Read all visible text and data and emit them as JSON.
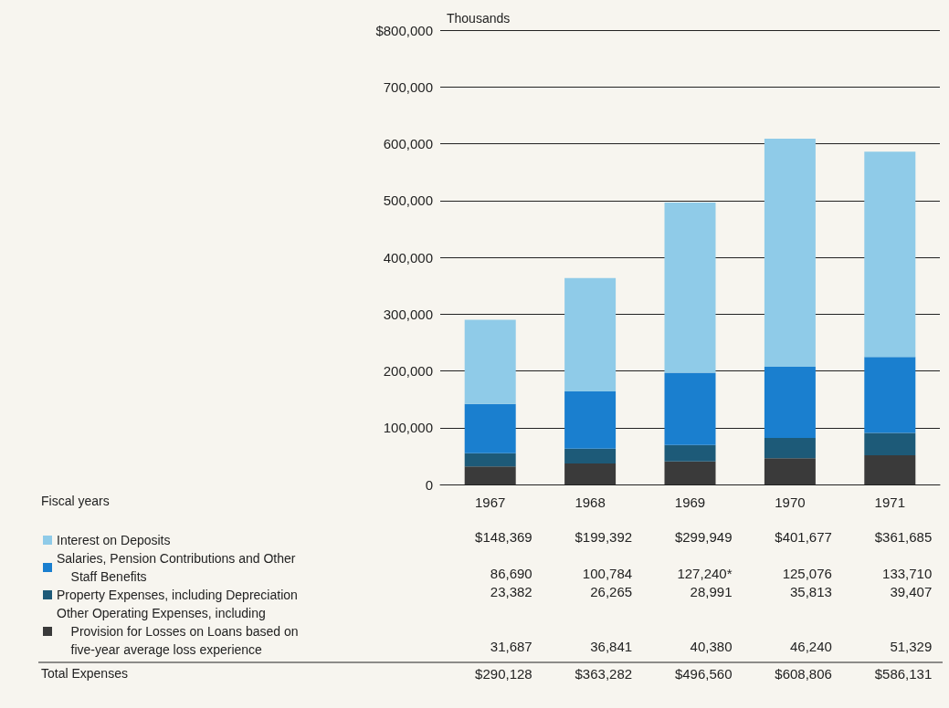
{
  "chart_data": {
    "type": "bar",
    "stacked": true,
    "ylabel": "Thousands",
    "categories": [
      "1967",
      "1968",
      "1969",
      "1970",
      "1971"
    ],
    "series": [
      {
        "name": "Other Operating Expenses, including Provision for Losses on Loans based on five-year average loss experience",
        "color": "#3a3a3a",
        "values": [
          31687,
          36841,
          40380,
          46240,
          51329
        ],
        "value_labels": [
          "31,687",
          "36,841",
          "40,380",
          "46,240",
          "51,329"
        ]
      },
      {
        "name": "Property Expenses, including Depreciation",
        "color": "#1d5a78",
        "values": [
          23382,
          26265,
          28991,
          35813,
          39407
        ],
        "value_labels": [
          "23,382",
          "26,265",
          "28,991",
          "35,813",
          "39,407"
        ]
      },
      {
        "name": "Salaries, Pension Contributions and Other Staff Benefits",
        "color": "#1a7fcf",
        "values": [
          86690,
          100784,
          127240,
          125076,
          133710
        ],
        "value_labels": [
          "86,690",
          "100,784",
          "127,240*",
          "125,076",
          "133,710"
        ]
      },
      {
        "name": "Interest on Deposits",
        "color": "#8fcbe8",
        "values": [
          148369,
          199392,
          299949,
          401677,
          361685
        ],
        "value_labels": [
          "$148,369",
          "$199,392",
          "$299,949",
          "$401,677",
          "$361,685"
        ]
      }
    ],
    "annotations": [
      "Fiscal years",
      "Total Expenses",
      "$290,128",
      "$363,282",
      "$496,560",
      "$608,806",
      "$586,131"
    ],
    "ylim": [
      0,
      800000
    ],
    "yticks": [
      0,
      {
        "value": 100000,
        "label": "100,000"
      },
      {
        "value": 200000,
        "label": "200,000"
      },
      {
        "value": 300000,
        "label": "300,000"
      },
      {
        "value": 400000,
        "label": "400,000"
      },
      {
        "value": 500000,
        "label": "500,000"
      },
      {
        "value": 600000,
        "label": "600,000"
      },
      {
        "value": 700000,
        "label": "700,000"
      },
      {
        "value": 800000,
        "label": "$800,000"
      }
    ],
    "grid": "y",
    "legend": "bottom left"
  }
}
